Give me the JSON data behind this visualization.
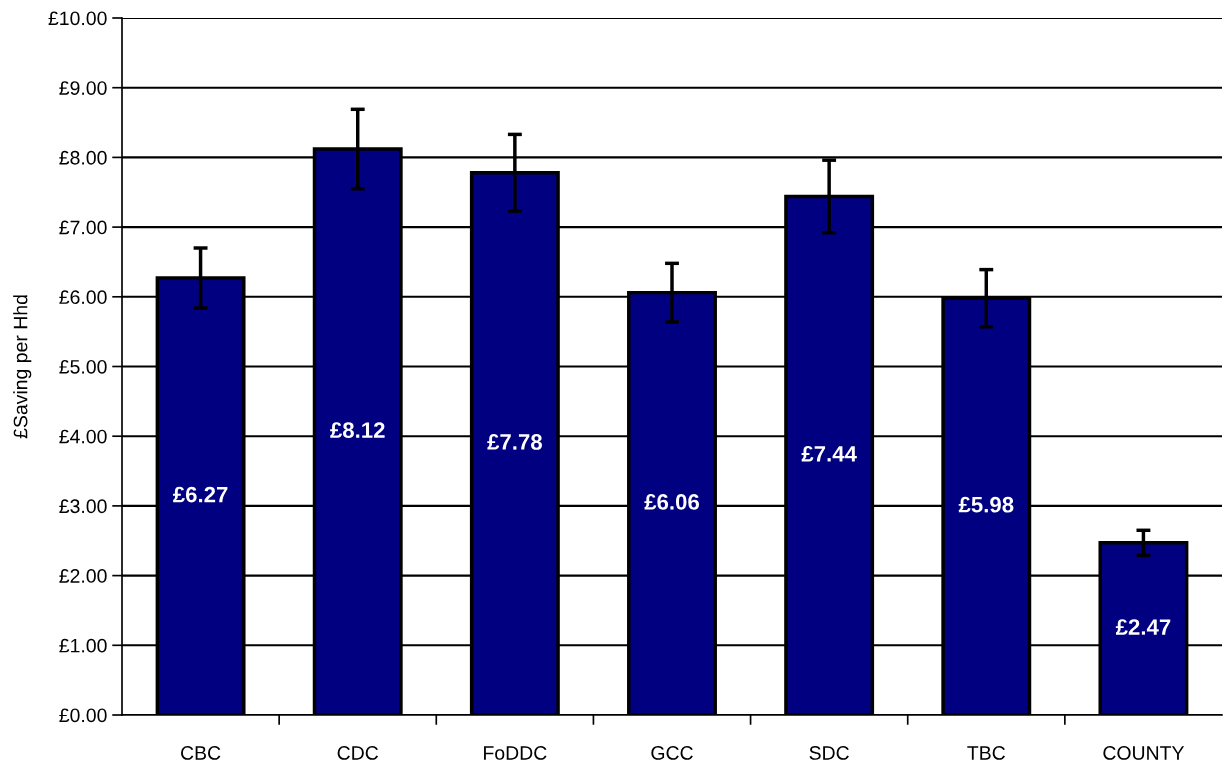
{
  "chart_data": {
    "type": "bar",
    "ylabel": "£Saving per Hhd",
    "categories": [
      "CBC",
      "CDC",
      "FoDDC",
      "GCC",
      "SDC",
      "TBC",
      "COUNTY"
    ],
    "values": [
      6.27,
      8.12,
      7.78,
      6.06,
      7.44,
      5.98,
      2.47
    ],
    "errors": [
      0.43,
      0.57,
      0.55,
      0.42,
      0.52,
      0.41,
      0.18
    ],
    "value_labels": [
      "£6.27",
      "£8.12",
      "£7.78",
      "£6.06",
      "£7.44",
      "£5.98",
      "£2.47"
    ],
    "color": "#000080",
    "ylim": [
      0,
      10
    ],
    "yticks": [
      {
        "value": 0,
        "label": "£0.00"
      },
      {
        "value": 1,
        "label": "£1.00"
      },
      {
        "value": 2,
        "label": "£2.00"
      },
      {
        "value": 3,
        "label": "£3.00"
      },
      {
        "value": 4,
        "label": "£4.00"
      },
      {
        "value": 5,
        "label": "£5.00"
      },
      {
        "value": 6,
        "label": "£6.00"
      },
      {
        "value": 7,
        "label": "£7.00"
      },
      {
        "value": 8,
        "label": "£8.00"
      },
      {
        "value": 9,
        "label": "£9.00"
      },
      {
        "value": 10,
        "label": "£10.00"
      }
    ],
    "grid": "y",
    "legend": false
  }
}
